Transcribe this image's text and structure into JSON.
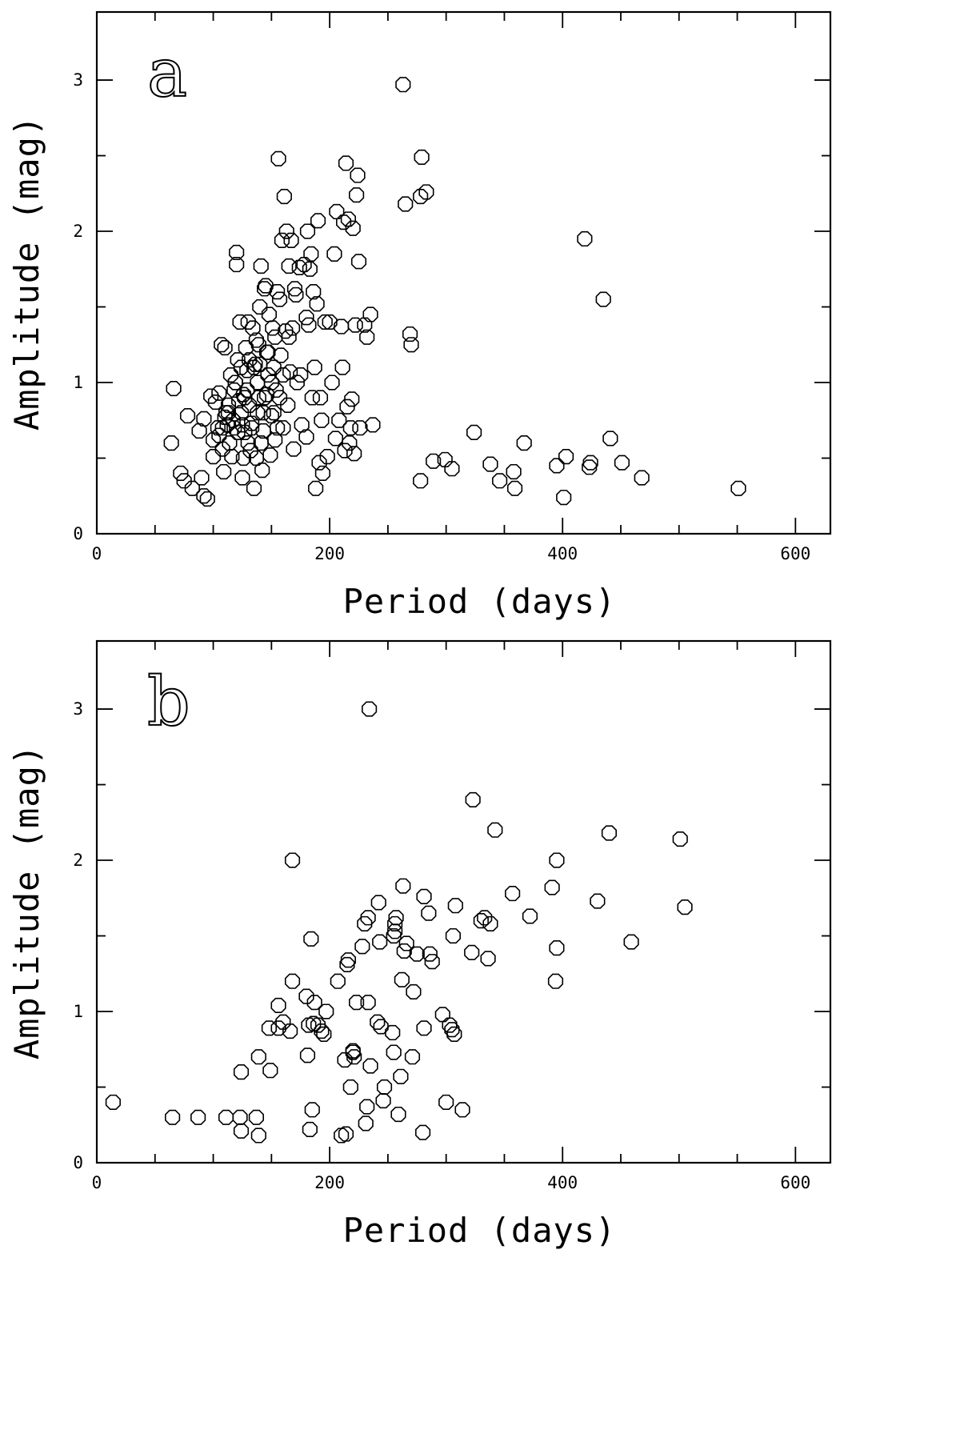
{
  "chart_data": [
    {
      "type": "scatter",
      "panel_label": "a",
      "xlabel": "Period (days)",
      "ylabel": "Amplitude (mag)",
      "xlim": [
        0,
        630
      ],
      "ylim": [
        0,
        3.45
      ],
      "xticks": [
        0,
        200,
        400,
        600
      ],
      "yticks": [
        0,
        1,
        2,
        3
      ],
      "x_minor_step": 50,
      "y_minor_step": 0.5,
      "marker": "octagon",
      "points": [
        [
          66,
          0.96
        ],
        [
          64,
          0.6
        ],
        [
          72,
          0.4
        ],
        [
          75,
          0.35
        ],
        [
          78,
          0.78
        ],
        [
          82,
          0.3
        ],
        [
          88,
          0.68
        ],
        [
          90,
          0.37
        ],
        [
          92,
          0.25
        ],
        [
          92,
          0.76
        ],
        [
          95,
          0.23
        ],
        [
          98,
          0.91
        ],
        [
          100,
          0.62
        ],
        [
          100,
          0.51
        ],
        [
          102,
          0.87
        ],
        [
          104,
          0.7
        ],
        [
          105,
          0.93
        ],
        [
          107,
          1.25
        ],
        [
          108,
          0.56
        ],
        [
          109,
          0.41
        ],
        [
          110,
          1.23
        ],
        [
          110,
          0.77
        ],
        [
          112,
          0.72
        ],
        [
          113,
          0.8
        ],
        [
          114,
          0.6
        ],
        [
          115,
          1.05
        ],
        [
          116,
          0.51
        ],
        [
          117,
          0.75
        ],
        [
          118,
          0.95
        ],
        [
          119,
          1.0
        ],
        [
          120,
          1.86
        ],
        [
          120,
          1.78
        ],
        [
          121,
          0.67
        ],
        [
          122,
          0.88
        ],
        [
          123,
          1.4
        ],
        [
          124,
          1.1
        ],
        [
          125,
          0.37
        ],
        [
          125,
          0.72
        ],
        [
          126,
          0.92
        ],
        [
          127,
          0.67
        ],
        [
          128,
          1.23
        ],
        [
          129,
          1.08
        ],
        [
          130,
          1.4
        ],
        [
          131,
          0.85
        ],
        [
          132,
          0.55
        ],
        [
          133,
          0.73
        ],
        [
          134,
          1.36
        ],
        [
          135,
          0.3
        ],
        [
          136,
          1.12
        ],
        [
          137,
          1.28
        ],
        [
          138,
          0.8
        ],
        [
          139,
          0.9
        ],
        [
          140,
          1.5
        ],
        [
          140,
          1.12
        ],
        [
          141,
          1.77
        ],
        [
          142,
          0.42
        ],
        [
          143,
          0.68
        ],
        [
          144,
          1.62
        ],
        [
          145,
          1.64
        ],
        [
          146,
          0.92
        ],
        [
          147,
          1.2
        ],
        [
          148,
          1.45
        ],
        [
          149,
          0.52
        ],
        [
          150,
          0.78
        ],
        [
          151,
          1.36
        ],
        [
          152,
          1.1
        ],
        [
          153,
          0.62
        ],
        [
          154,
          0.95
        ],
        [
          155,
          1.6
        ],
        [
          156,
          2.48
        ],
        [
          157,
          1.55
        ],
        [
          158,
          1.18
        ],
        [
          159,
          1.94
        ],
        [
          160,
          0.7
        ],
        [
          161,
          2.23
        ],
        [
          162,
          1.34
        ],
        [
          163,
          2.0
        ],
        [
          164,
          0.85
        ],
        [
          165,
          1.77
        ],
        [
          166,
          1.07
        ],
        [
          167,
          1.94
        ],
        [
          168,
          1.36
        ],
        [
          169,
          0.56
        ],
        [
          170,
          1.62
        ],
        [
          171,
          1.58
        ],
        [
          172,
          1.0
        ],
        [
          174,
          1.76
        ],
        [
          175,
          1.05
        ],
        [
          176,
          0.72
        ],
        [
          178,
          1.78
        ],
        [
          180,
          1.43
        ],
        [
          180,
          0.64
        ],
        [
          181,
          2.0
        ],
        [
          182,
          1.38
        ],
        [
          183,
          1.75
        ],
        [
          184,
          1.85
        ],
        [
          185,
          0.9
        ],
        [
          186,
          1.6
        ],
        [
          187,
          1.1
        ],
        [
          188,
          0.3
        ],
        [
          189,
          1.52
        ],
        [
          190,
          2.07
        ],
        [
          191,
          0.47
        ],
        [
          192,
          0.9
        ],
        [
          193,
          0.75
        ],
        [
          194,
          0.4
        ],
        [
          196,
          1.4
        ],
        [
          198,
          0.51
        ],
        [
          200,
          1.4
        ],
        [
          202,
          1.0
        ],
        [
          204,
          1.85
        ],
        [
          205,
          0.63
        ],
        [
          206,
          2.13
        ],
        [
          208,
          0.75
        ],
        [
          210,
          1.37
        ],
        [
          211,
          1.1
        ],
        [
          212,
          2.06
        ],
        [
          213,
          0.55
        ],
        [
          214,
          2.45
        ],
        [
          215,
          0.84
        ],
        [
          216,
          2.08
        ],
        [
          217,
          0.6
        ],
        [
          218,
          0.7
        ],
        [
          219,
          0.89
        ],
        [
          220,
          2.02
        ],
        [
          221,
          0.53
        ],
        [
          222,
          1.38
        ],
        [
          223,
          2.24
        ],
        [
          224,
          2.37
        ],
        [
          225,
          1.8
        ],
        [
          226,
          0.7
        ],
        [
          230,
          1.38
        ],
        [
          232,
          1.3
        ],
        [
          235,
          1.45
        ],
        [
          237,
          0.72
        ],
        [
          119,
          1.0
        ],
        [
          127,
          0.9
        ],
        [
          135,
          1.1
        ],
        [
          143,
          0.8
        ],
        [
          130,
          0.6
        ],
        [
          138,
          1.0
        ],
        [
          146,
          1.2
        ],
        [
          152,
          0.8
        ],
        [
          126,
          0.5
        ],
        [
          133,
          0.7
        ],
        [
          141,
          0.6
        ],
        [
          108,
          0.7
        ],
        [
          111,
          0.8
        ],
        [
          118,
          0.7
        ],
        [
          124,
          0.8
        ],
        [
          129,
          0.95
        ],
        [
          137,
          0.5
        ],
        [
          144,
          0.9
        ],
        [
          150,
          1.0
        ],
        [
          155,
          0.7
        ],
        [
          157,
          0.9
        ],
        [
          105,
          0.65
        ],
        [
          113,
          0.85
        ],
        [
          121,
          1.15
        ],
        [
          131,
          1.15
        ],
        [
          139,
          1.25
        ],
        [
          147,
          1.05
        ],
        [
          153,
          1.3
        ],
        [
          160,
          1.05
        ],
        [
          165,
          1.3
        ],
        [
          263,
          2.97
        ],
        [
          265,
          2.18
        ],
        [
          269,
          1.32
        ],
        [
          270,
          1.25
        ],
        [
          278,
          2.23
        ],
        [
          279,
          2.49
        ],
        [
          283,
          2.26
        ],
        [
          278,
          0.35
        ],
        [
          289,
          0.48
        ],
        [
          299,
          0.49
        ],
        [
          305,
          0.43
        ],
        [
          324,
          0.67
        ],
        [
          338,
          0.46
        ],
        [
          346,
          0.35
        ],
        [
          358,
          0.41
        ],
        [
          359,
          0.3
        ],
        [
          367,
          0.6
        ],
        [
          395,
          0.45
        ],
        [
          401,
          0.24
        ],
        [
          403,
          0.51
        ],
        [
          419,
          1.95
        ],
        [
          423,
          0.44
        ],
        [
          424,
          0.47
        ],
        [
          435,
          1.55
        ],
        [
          441,
          0.63
        ],
        [
          451,
          0.47
        ],
        [
          468,
          0.37
        ],
        [
          551,
          0.3
        ]
      ]
    },
    {
      "type": "scatter",
      "panel_label": "b",
      "xlabel": "Period (days)",
      "ylabel": "Amplitude (mag)",
      "xlim": [
        0,
        630
      ],
      "ylim": [
        0,
        3.45
      ],
      "xticks": [
        0,
        200,
        400,
        600
      ],
      "yticks": [
        0,
        1,
        2,
        3
      ],
      "x_minor_step": 50,
      "y_minor_step": 0.5,
      "marker": "octagon",
      "points": [
        [
          14,
          0.4
        ],
        [
          65,
          0.3
        ],
        [
          87,
          0.3
        ],
        [
          111,
          0.3
        ],
        [
          123,
          0.3
        ],
        [
          124,
          0.21
        ],
        [
          124,
          0.6
        ],
        [
          137,
          0.3
        ],
        [
          139,
          0.18
        ],
        [
          139,
          0.7
        ],
        [
          148,
          0.89
        ],
        [
          149,
          0.61
        ],
        [
          156,
          1.04
        ],
        [
          156,
          0.89
        ],
        [
          160,
          0.93
        ],
        [
          166,
          0.87
        ],
        [
          168,
          1.2
        ],
        [
          168,
          2.0
        ],
        [
          180,
          1.1
        ],
        [
          181,
          0.71
        ],
        [
          182,
          0.91
        ],
        [
          183,
          0.22
        ],
        [
          184,
          1.48
        ],
        [
          185,
          0.35
        ],
        [
          186,
          0.92
        ],
        [
          187,
          1.06
        ],
        [
          190,
          0.91
        ],
        [
          193,
          0.87
        ],
        [
          195,
          0.85
        ],
        [
          197,
          1.0
        ],
        [
          207,
          1.2
        ],
        [
          210,
          0.18
        ],
        [
          213,
          0.68
        ],
        [
          214,
          0.19
        ],
        [
          215,
          1.31
        ],
        [
          216,
          1.34
        ],
        [
          218,
          0.5
        ],
        [
          220,
          0.74
        ],
        [
          220,
          0.73
        ],
        [
          221,
          0.7
        ],
        [
          223,
          1.06
        ],
        [
          228,
          1.43
        ],
        [
          230,
          1.58
        ],
        [
          231,
          0.26
        ],
        [
          232,
          0.37
        ],
        [
          233,
          1.06
        ],
        [
          233,
          1.62
        ],
        [
          234,
          3.0
        ],
        [
          235,
          0.64
        ],
        [
          241,
          0.93
        ],
        [
          242,
          1.72
        ],
        [
          243,
          1.46
        ],
        [
          244,
          0.9
        ],
        [
          246,
          0.41
        ],
        [
          247,
          0.5
        ],
        [
          254,
          0.86
        ],
        [
          255,
          0.73
        ],
        [
          255,
          1.5
        ],
        [
          256,
          1.53
        ],
        [
          256,
          1.58
        ],
        [
          257,
          1.62
        ],
        [
          259,
          0.32
        ],
        [
          261,
          0.57
        ],
        [
          262,
          1.21
        ],
        [
          263,
          1.83
        ],
        [
          264,
          1.4
        ],
        [
          266,
          1.45
        ],
        [
          271,
          0.7
        ],
        [
          272,
          1.13
        ],
        [
          275,
          1.38
        ],
        [
          280,
          0.2
        ],
        [
          281,
          0.89
        ],
        [
          281,
          1.76
        ],
        [
          285,
          1.65
        ],
        [
          286,
          1.38
        ],
        [
          288,
          1.33
        ],
        [
          297,
          0.98
        ],
        [
          300,
          0.4
        ],
        [
          303,
          0.91
        ],
        [
          305,
          0.88
        ],
        [
          307,
          0.85
        ],
        [
          306,
          1.5
        ],
        [
          308,
          1.7
        ],
        [
          314,
          0.35
        ],
        [
          322,
          1.39
        ],
        [
          323,
          2.4
        ],
        [
          330,
          1.6
        ],
        [
          333,
          1.62
        ],
        [
          336,
          1.35
        ],
        [
          338,
          1.58
        ],
        [
          342,
          2.2
        ],
        [
          357,
          1.78
        ],
        [
          372,
          1.63
        ],
        [
          391,
          1.82
        ],
        [
          394,
          1.2
        ],
        [
          395,
          1.42
        ],
        [
          395,
          2.0
        ],
        [
          430,
          1.73
        ],
        [
          440,
          2.18
        ],
        [
          459,
          1.46
        ],
        [
          501,
          2.14
        ],
        [
          505,
          1.69
        ]
      ]
    }
  ]
}
